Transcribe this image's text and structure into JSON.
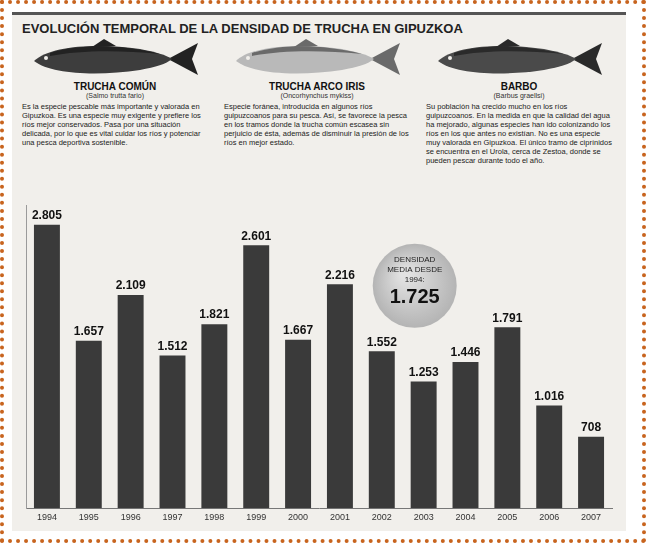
{
  "species": [
    {
      "name": "TRUCHA COMÚN",
      "scientific_name": "(Salmo trutta fario)",
      "text": "Es la especie pescable más importante y valorada en Gipuzkoa. Es una especie muy exigente y prefiere los ríos mejor conservados. Pasa por una situación delicada, por lo que es vital cuidar los ríos y potenciar una pesca deportiva sostenible."
    },
    {
      "name": "TRUCHA ARCO IRIS",
      "scientific_name": "(Oncorhynchus mykiss)",
      "text": "Especie foránea, introducida en algunos ríos guipuzcoanos para su pesca. Así, se favorece la pesca en los tramos donde la trucha común escasea sin perjuicio de ésta, además de disminuir la presión de los ríos en mejor estado."
    },
    {
      "name": "BARBO",
      "scientific_name": "(Barbus graellsi)",
      "text": "Su población ha crecido mucho en los ríos guipuzcoanos. En la medida en que la calidad del agua ha mejorado, algunas especies han ido colonizando los ríos en los que antes no existían. No es una especie muy valorada en Gipuzkoa. El único tramo de ciprínidos se encuentra en el Urola, cerca de Zestoa, donde se pueden pescar durante todo el año."
    }
  ],
  "chart_data": {
    "type": "bar",
    "title": "EVOLUCIÓN TEMPORAL DE LA DENSIDAD DE TRUCHA EN GIPUZKOA",
    "categories": [
      "1994",
      "1995",
      "1996",
      "1997",
      "1998",
      "1999",
      "2000",
      "2001",
      "2002",
      "2003",
      "2004",
      "2005",
      "2006",
      "2007"
    ],
    "values": [
      2805,
      1657,
      2109,
      1512,
      1821,
      2601,
      1667,
      2216,
      1552,
      1253,
      1446,
      1791,
      1016,
      708
    ],
    "value_labels": [
      "2.805",
      "1.657",
      "2.109",
      "1.512",
      "1.821",
      "2.601",
      "1.667",
      "2.216",
      "1.552",
      "1.253",
      "1.446",
      "1.791",
      "1.016",
      "708"
    ],
    "color": "#3a3a3a",
    "ylim": [
      0,
      3000
    ],
    "grid": false,
    "data_labels": true,
    "tick_labels": "x",
    "annotation": {
      "text": "DENSIDAD MEDIA DESDE 1994:",
      "value": 1725,
      "label": "1.725"
    }
  }
}
